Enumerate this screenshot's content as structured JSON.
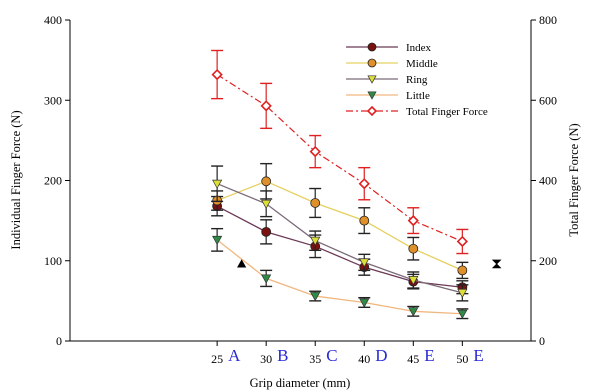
{
  "chart_data": {
    "type": "line",
    "title": "",
    "xlabel": "Grip diameter (mm)",
    "ylabel_left": "Individual Finger Force (N)",
    "ylabel_right": "Total Finger Force (N)",
    "x": [
      25,
      30,
      35,
      40,
      45,
      50
    ],
    "x_letters": [
      "A",
      "B",
      "C",
      "D",
      "E",
      "E"
    ],
    "xlim": [
      10,
      57
    ],
    "ylim_left": [
      0,
      400
    ],
    "ylim_right": [
      0,
      800
    ],
    "yticks_left": [
      "0",
      "100",
      "200",
      "300",
      "400"
    ],
    "yticks_right": [
      "0",
      "200",
      "400",
      "600",
      "800"
    ],
    "grid": false,
    "legend_position": "top-right",
    "series": [
      {
        "name": "Index",
        "axis": "left",
        "color": "#6b1f2a",
        "line_color": "#6b3a55",
        "marker": "circle",
        "marker_fill": "#7a1010",
        "values": [
          168,
          136,
          118,
          92,
          74,
          67
        ],
        "errors": [
          12,
          15,
          14,
          10,
          9,
          8
        ]
      },
      {
        "name": "Middle",
        "axis": "left",
        "color": "#e08a2a",
        "line_color": "#e5d060",
        "marker": "circle",
        "marker_fill": "#e0902a",
        "values": [
          175,
          199,
          172,
          150,
          115,
          88
        ],
        "errors": [
          12,
          22,
          18,
          16,
          14,
          10
        ]
      },
      {
        "name": "Ring",
        "axis": "left",
        "color": "#c8c830",
        "line_color": "#7a6a78",
        "marker": "triangle-down",
        "marker_fill": "#dede3a",
        "values": [
          196,
          171,
          125,
          98,
          76,
          60
        ],
        "errors": [
          22,
          16,
          12,
          10,
          10,
          10
        ]
      },
      {
        "name": "Little",
        "axis": "left",
        "color": "#2a7a3a",
        "line_color": "#f0b880",
        "marker": "triangle-down",
        "marker_fill": "#2e8a44",
        "values": [
          126,
          78,
          56,
          48,
          37,
          34
        ],
        "errors": [
          14,
          10,
          6,
          6,
          6,
          6
        ]
      },
      {
        "name": "Total Finger Force",
        "axis": "right",
        "color": "#e02020",
        "line_color": "#e02020",
        "marker": "diamond",
        "marker_fill": "#ffffff",
        "dash": "dash-dot",
        "values": [
          664,
          586,
          472,
          392,
          300,
          248
        ],
        "errors": [
          60,
          56,
          40,
          40,
          32,
          30
        ]
      }
    ],
    "extra_markers": [
      {
        "shape": "triangle-up",
        "x": 27.5,
        "y_left": 96
      },
      {
        "shape": "hourglass",
        "x": 53.5,
        "y_left": 96
      }
    ]
  }
}
